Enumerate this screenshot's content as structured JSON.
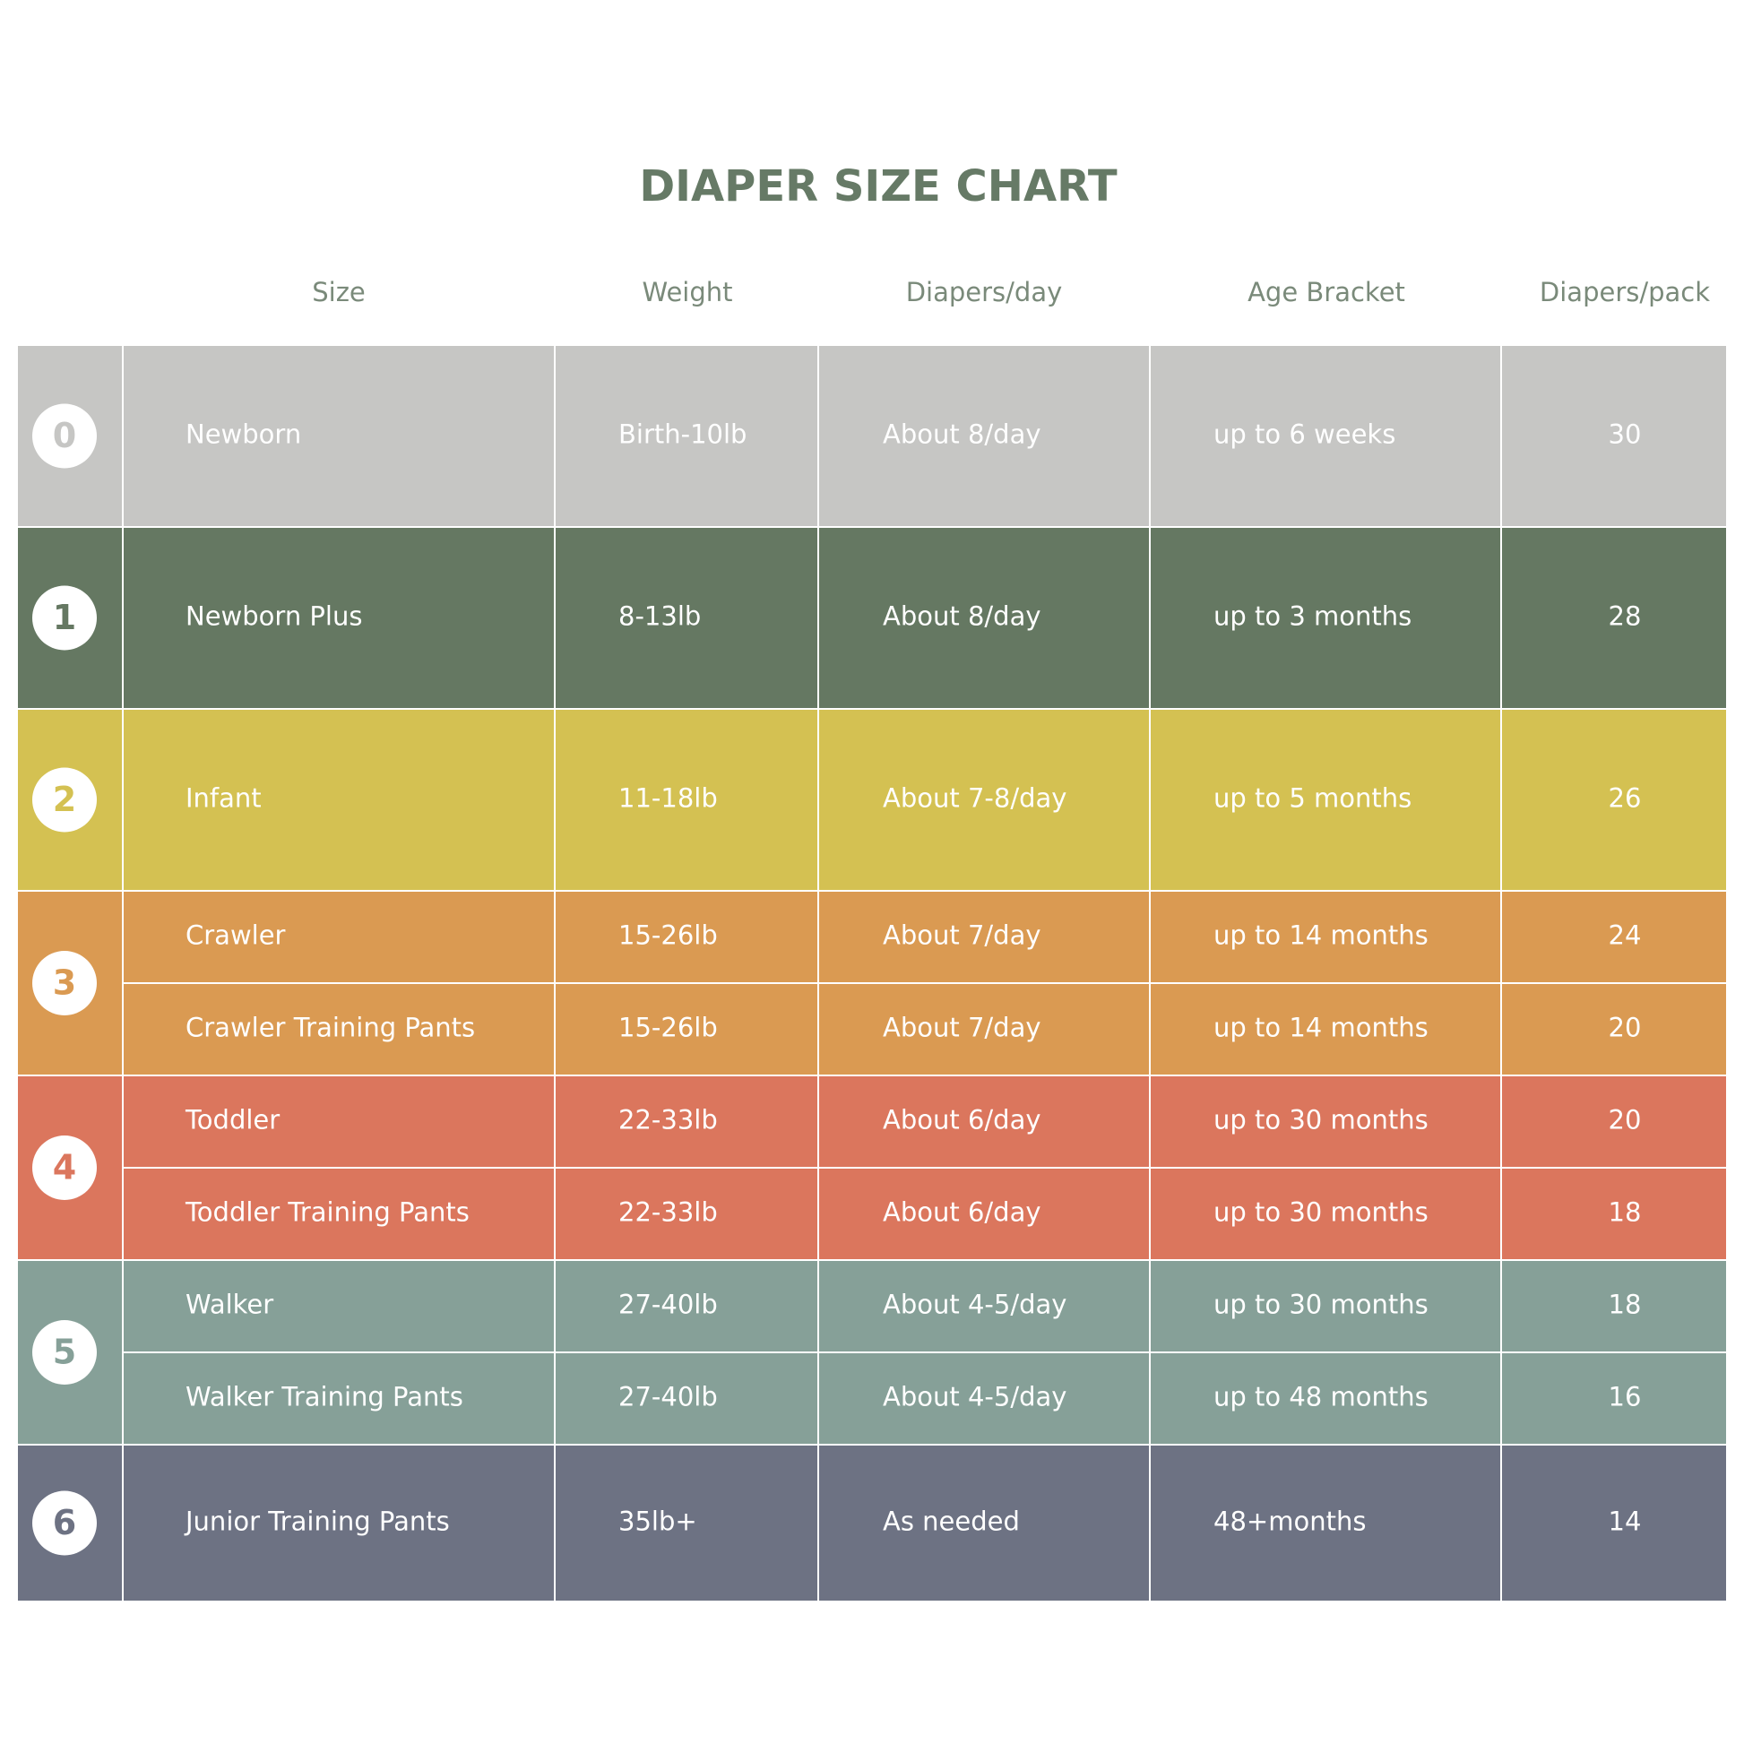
{
  "title": "DIAPER SIZE CHART",
  "header": [
    "Size",
    "Weight",
    "Diapers/day",
    "Age Bracket",
    "Diapers/pack"
  ],
  "groups": [
    {
      "size": 0,
      "color": "#c6c6c4",
      "rows": [
        [
          "Newborn",
          "Birth-10lb",
          "About 8/day",
          "up to 6 weeks",
          30
        ]
      ]
    },
    {
      "size": 1,
      "color": "#657862",
      "rows": [
        [
          "Newborn Plus",
          "8-13lb",
          "About 8/day",
          "up to 3 months",
          28
        ]
      ]
    },
    {
      "size": 2,
      "color": "#d4c152",
      "rows": [
        [
          "Infant",
          "11-18lb",
          "About 7-8/day",
          "up to 5 months",
          26
        ]
      ]
    },
    {
      "size": 3,
      "color": "#da9a52",
      "rows": [
        [
          "Crawler",
          "15-26lb",
          "About 7/day",
          "up to 14 months",
          24
        ],
        [
          "Crawler Training Pants",
          "15-26lb",
          "About 7/day",
          "up to 14 months",
          20
        ]
      ]
    },
    {
      "size": 4,
      "color": "#db765d",
      "rows": [
        [
          "Toddler",
          "22-33lb",
          "About 6/day",
          "up to 30 months",
          20
        ],
        [
          "Toddler Training Pants",
          "22-33lb",
          "About 6/day",
          "up to 30 months",
          18
        ]
      ]
    },
    {
      "size": 5,
      "color": "#86a098",
      "rows": [
        [
          "Walker",
          "27-40lb",
          "About 4-5/day",
          "up to 30 months",
          18
        ],
        [
          "Walker Training Pants",
          "27-40lb",
          "About 4-5/day",
          "up to 48 months",
          16
        ]
      ]
    },
    {
      "size": 6,
      "color": "#6d7283",
      "rows": [
        [
          "Junior Training Pants",
          "35lb+",
          "As needed",
          "48+months",
          14
        ]
      ]
    }
  ]
}
